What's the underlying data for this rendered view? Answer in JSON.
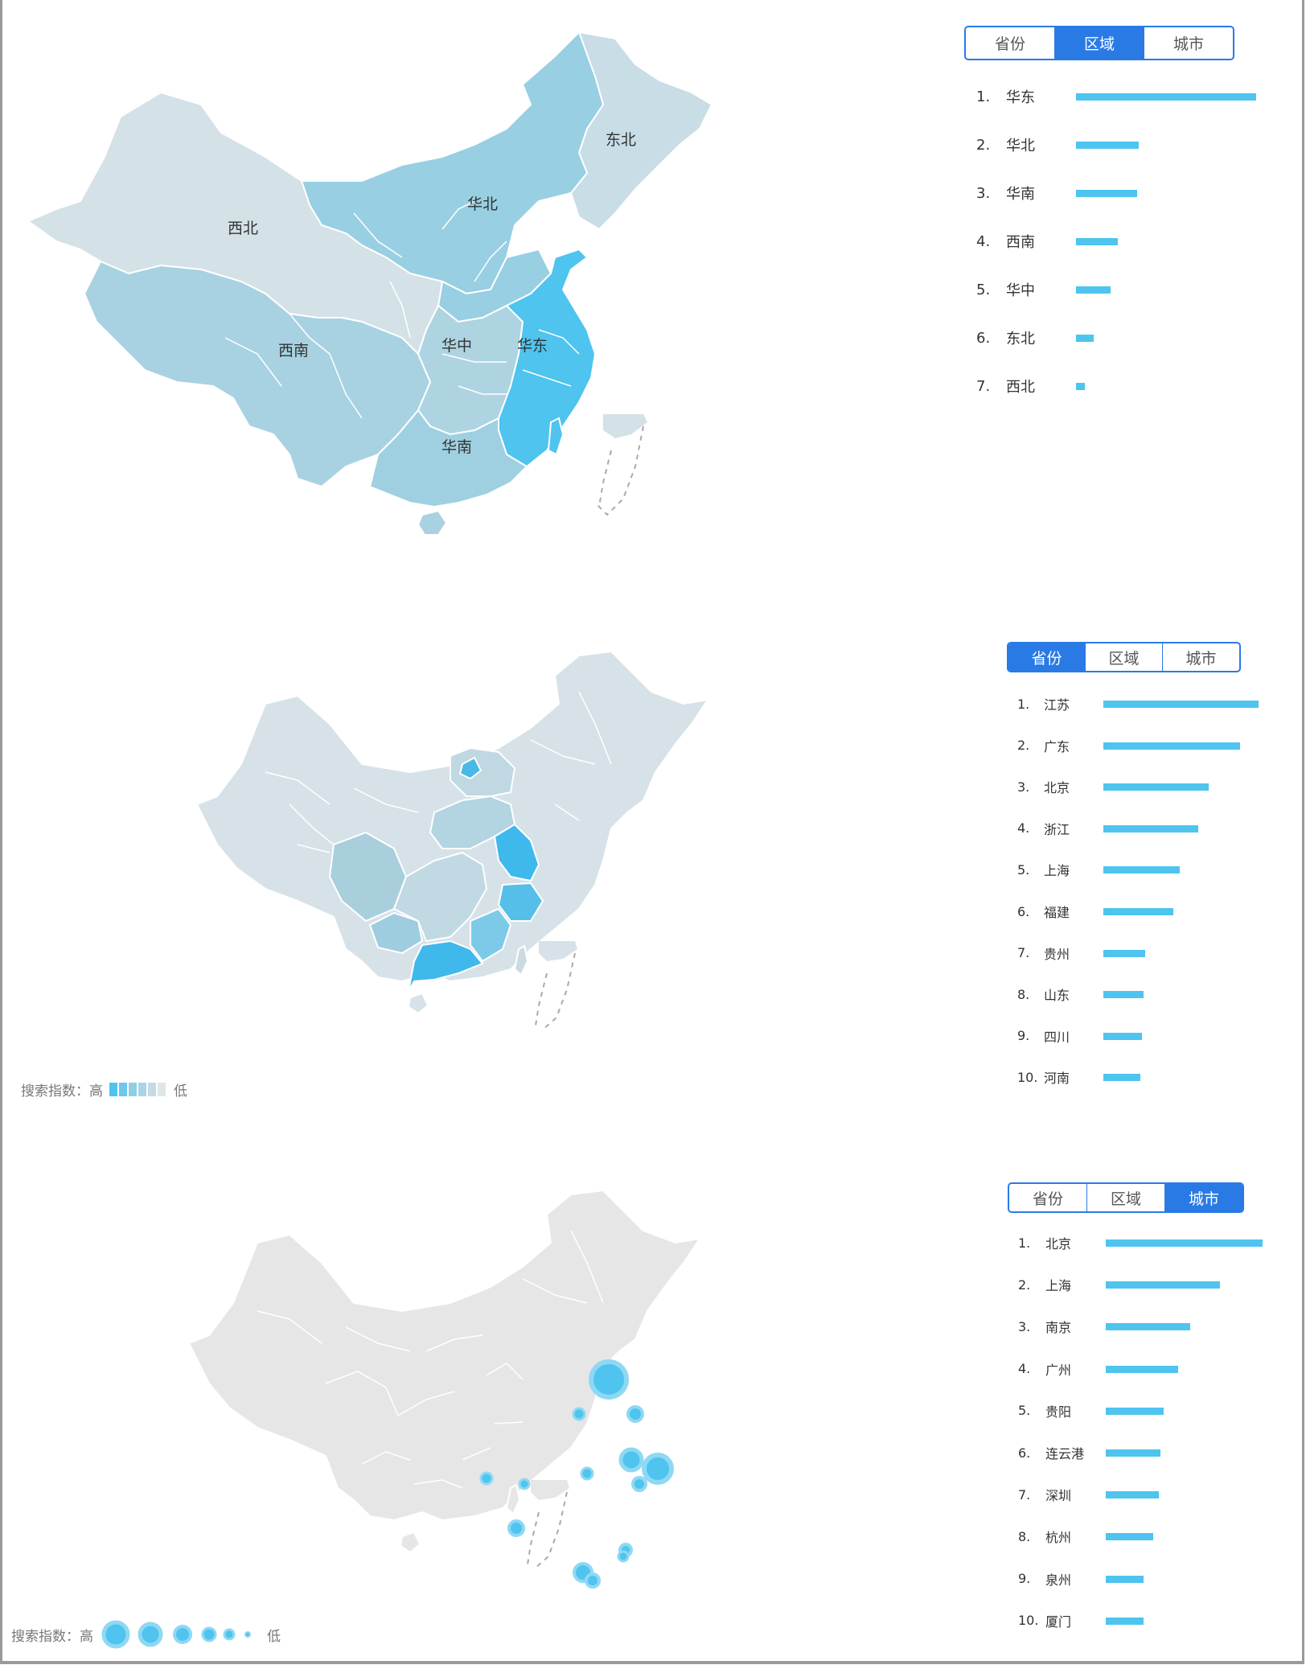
{
  "tabs_labels": [
    "省份",
    "区域",
    "城市"
  ],
  "panels": [
    {
      "active_tab": "区域",
      "map_labels": [
        "东北",
        "华北",
        "西北",
        "西南",
        "华中",
        "华东",
        "华南"
      ],
      "ranking": [
        {
          "rank": "1.",
          "name": "华东",
          "value": 100
        },
        {
          "rank": "2.",
          "name": "华北",
          "value": 35
        },
        {
          "rank": "3.",
          "name": "华南",
          "value": 34
        },
        {
          "rank": "4.",
          "name": "西南",
          "value": 23
        },
        {
          "rank": "5.",
          "name": "华中",
          "value": 19
        },
        {
          "rank": "6.",
          "name": "东北",
          "value": 10
        },
        {
          "rank": "7.",
          "name": "西北",
          "value": 5
        }
      ]
    },
    {
      "active_tab": "省份",
      "ranking": [
        {
          "rank": "1.",
          "name": "江苏",
          "value": 100
        },
        {
          "rank": "2.",
          "name": "广东",
          "value": 88
        },
        {
          "rank": "3.",
          "name": "北京",
          "value": 68
        },
        {
          "rank": "4.",
          "name": "浙江",
          "value": 61
        },
        {
          "rank": "5.",
          "name": "上海",
          "value": 49
        },
        {
          "rank": "6.",
          "name": "福建",
          "value": 45
        },
        {
          "rank": "7.",
          "name": "贵州",
          "value": 27
        },
        {
          "rank": "8.",
          "name": "山东",
          "value": 26
        },
        {
          "rank": "9.",
          "name": "四川",
          "value": 25
        },
        {
          "rank": "10.",
          "name": "河南",
          "value": 24
        }
      ],
      "legend": {
        "label": "搜索指数：高",
        "low": "低"
      }
    },
    {
      "active_tab": "城市",
      "ranking": [
        {
          "rank": "1.",
          "name": "北京",
          "value": 100
        },
        {
          "rank": "2.",
          "name": "上海",
          "value": 73
        },
        {
          "rank": "3.",
          "name": "南京",
          "value": 54
        },
        {
          "rank": "4.",
          "name": "广州",
          "value": 46
        },
        {
          "rank": "5.",
          "name": "贵阳",
          "value": 37
        },
        {
          "rank": "6.",
          "name": "连云港",
          "value": 35
        },
        {
          "rank": "7.",
          "name": "深圳",
          "value": 34
        },
        {
          "rank": "8.",
          "name": "杭州",
          "value": 30
        },
        {
          "rank": "9.",
          "name": "泉州",
          "value": 24
        },
        {
          "rank": "10.",
          "name": "厦门",
          "value": 24
        }
      ],
      "legend": {
        "label": "搜索指数：高",
        "low": "低"
      }
    }
  ],
  "colors": {
    "accent": "#2a7ae6",
    "bar": "#4ec4ef",
    "map_scale": [
      "#4ec4ef",
      "#7ccbe6",
      "#98cfe2",
      "#aed4e2",
      "#c4dbe4",
      "#d3e0e7"
    ],
    "map_gray": "#e6e6e6"
  }
}
